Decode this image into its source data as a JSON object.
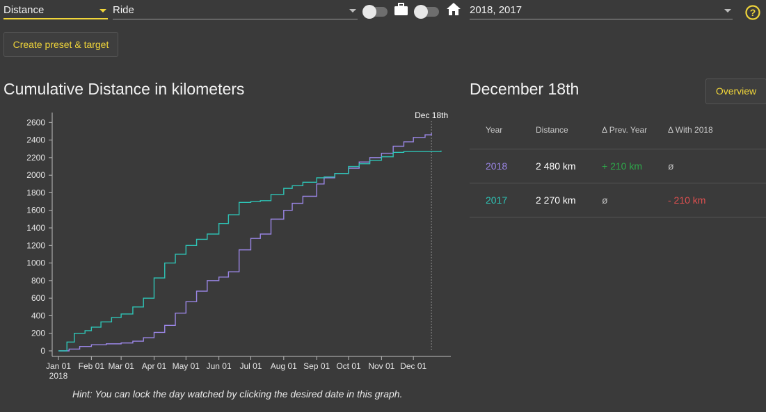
{
  "filters": {
    "metric": "Distance",
    "activity": "Ride",
    "years": "2018, 2017"
  },
  "icons": {
    "commute": "briefcase-icon",
    "home": "home-icon",
    "help": "help-icon"
  },
  "actions": {
    "create_preset": "Create preset & target",
    "overview": "Overview"
  },
  "chart": {
    "title": "Cumulative Distance in kilometers",
    "hint": "Hint: You can lock the day watched by clicking the desired date in this graph."
  },
  "stats": {
    "date_title": "December 18th",
    "headers": [
      "Year",
      "Distance",
      "Δ Prev. Year",
      "Δ With 2018"
    ],
    "rows": [
      {
        "year": "2018",
        "distance": "2 480 km",
        "prev": "+ 210 km",
        "with": "ø"
      },
      {
        "year": "2017",
        "distance": "2 270 km",
        "prev": "ø",
        "with": "- 210 km"
      }
    ]
  },
  "colors": {
    "accent": "#f0d53a",
    "series_2018": "#9b86e6",
    "series_2017": "#2ec4b6",
    "positive": "#2ea84a",
    "negative": "#e05050"
  },
  "chart_data": {
    "type": "line",
    "title": "Cumulative Distance in kilometers",
    "xlabel": "",
    "ylabel": "",
    "x_ticks": [
      "Jan 01",
      "Feb 01",
      "Mar 01",
      "Apr 01",
      "May 01",
      "Jun 01",
      "Jul 01",
      "Aug 01",
      "Sep 01",
      "Oct 01",
      "Nov 01",
      "Dec 01"
    ],
    "x_year_label": "2018",
    "y_ticks": [
      0,
      200,
      400,
      600,
      800,
      1000,
      1200,
      1400,
      1600,
      1800,
      2000,
      2200,
      2400,
      2600
    ],
    "ylim": [
      0,
      2650
    ],
    "xlim_day": [
      0,
      364
    ],
    "marker": {
      "label": "Dec 18th",
      "day": 351
    },
    "series": [
      {
        "name": "2018",
        "color": "#9b86e6",
        "day": [
          0,
          10,
          20,
          31,
          45,
          59,
          70,
          80,
          90,
          100,
          110,
          120,
          130,
          140,
          151,
          160,
          170,
          181,
          190,
          200,
          212,
          220,
          230,
          243,
          250,
          260,
          273,
          283,
          293,
          304,
          315,
          325,
          334,
          345,
          351
        ],
        "value": [
          0,
          20,
          50,
          70,
          80,
          90,
          110,
          150,
          210,
          290,
          430,
          560,
          680,
          800,
          840,
          900,
          1150,
          1280,
          1330,
          1500,
          1600,
          1680,
          1760,
          1900,
          1970,
          2020,
          2080,
          2150,
          2200,
          2250,
          2330,
          2380,
          2430,
          2460,
          2480
        ]
      },
      {
        "name": "2017",
        "color": "#2ec4b6",
        "day": [
          0,
          8,
          15,
          25,
          31,
          40,
          50,
          59,
          70,
          80,
          90,
          100,
          110,
          120,
          130,
          140,
          151,
          160,
          170,
          181,
          190,
          200,
          212,
          220,
          230,
          243,
          250,
          260,
          273,
          283,
          293,
          304,
          315,
          325,
          334,
          345,
          351,
          360
        ],
        "value": [
          0,
          100,
          200,
          230,
          270,
          330,
          380,
          420,
          500,
          600,
          830,
          1000,
          1100,
          1200,
          1270,
          1330,
          1450,
          1550,
          1690,
          1700,
          1710,
          1780,
          1850,
          1880,
          1920,
          1970,
          1980,
          2020,
          2100,
          2130,
          2170,
          2210,
          2260,
          2270,
          2270,
          2270,
          2270,
          2280
        ]
      }
    ]
  }
}
